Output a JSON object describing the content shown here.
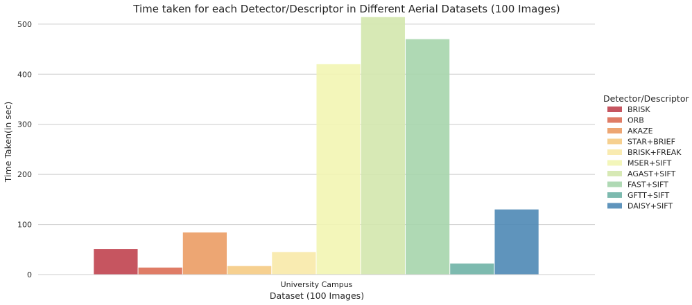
{
  "chart_data": {
    "type": "bar",
    "title": "Time taken for each Detector/Descriptor in Different Aerial Datasets (100 Images)",
    "xlabel": "Dataset (100 Images)",
    "ylabel": "Time Taken(in sec)",
    "categories": [
      "University Campus"
    ],
    "ylim": [
      0,
      515
    ],
    "yticks": [
      0,
      100,
      200,
      300,
      400,
      500
    ],
    "grid": "horizontal",
    "legend": {
      "title": "Detector/Descriptor",
      "placement": "right"
    },
    "series": [
      {
        "name": "BRISK",
        "values": [
          51
        ],
        "color": "#c0434f"
      },
      {
        "name": "ORB",
        "values": [
          14
        ],
        "color": "#dc6e55"
      },
      {
        "name": "AKAZE",
        "values": [
          84
        ],
        "color": "#eb9c64"
      },
      {
        "name": "STAR+BRIEF",
        "values": [
          17
        ],
        "color": "#f5cb84"
      },
      {
        "name": "BRISK+FREAK",
        "values": [
          45
        ],
        "color": "#f8e9a8"
      },
      {
        "name": "MSER+SIFT",
        "values": [
          420
        ],
        "color": "#f2f5b2"
      },
      {
        "name": "AGAST+SIFT",
        "values": [
          514
        ],
        "color": "#d3e7ad"
      },
      {
        "name": "FAST+SIFT",
        "values": [
          470
        ],
        "color": "#a6d5ac"
      },
      {
        "name": "GFTT+SIFT",
        "values": [
          22
        ],
        "color": "#6fb3a6"
      },
      {
        "name": "DAISY+SIFT",
        "values": [
          130
        ],
        "color": "#4e88b5"
      }
    ]
  }
}
